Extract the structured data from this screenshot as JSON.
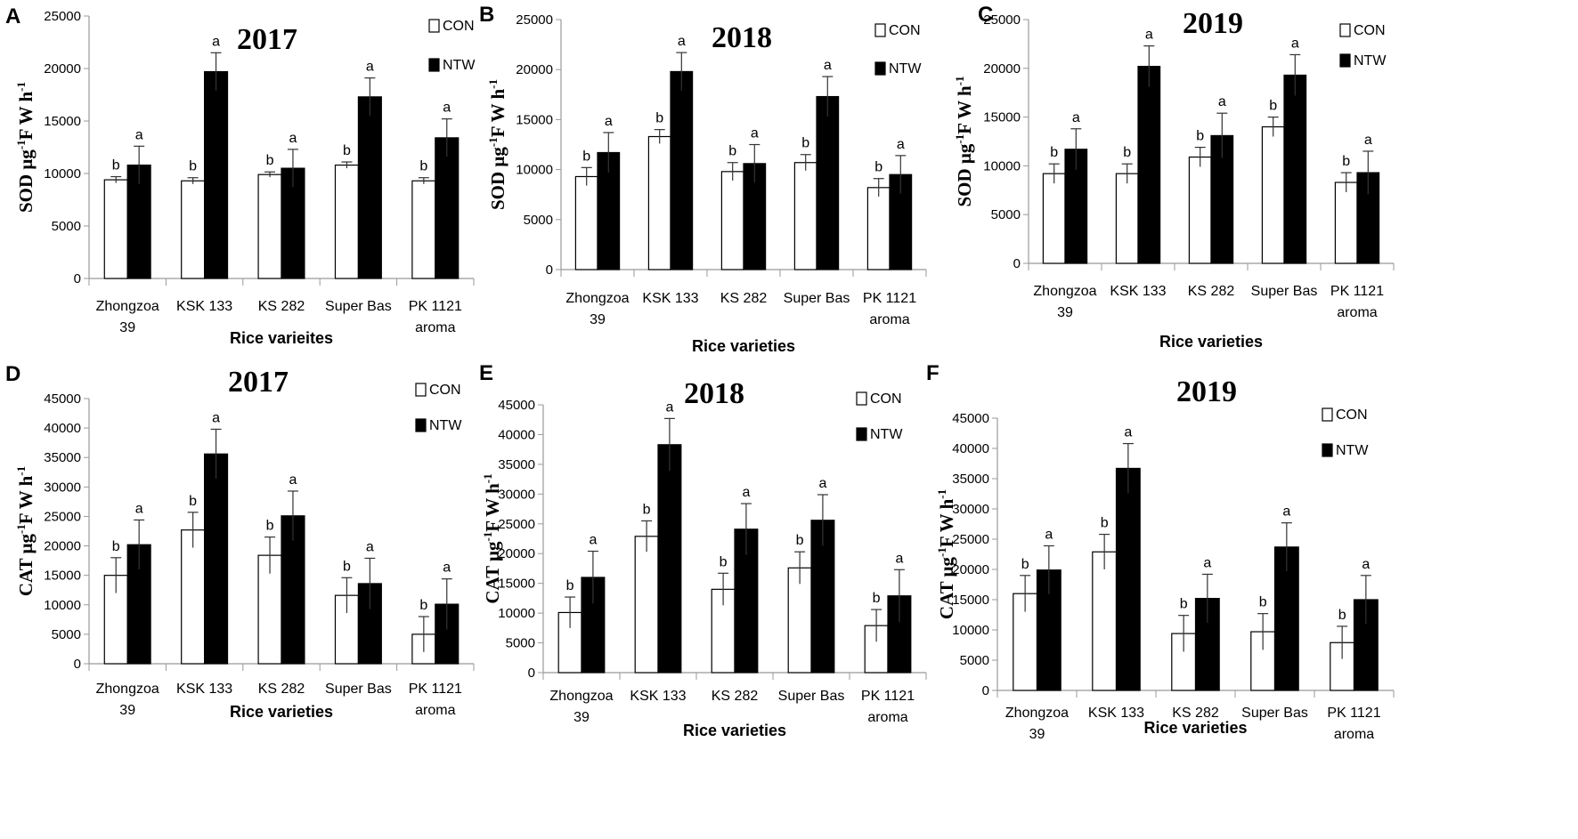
{
  "colors": {
    "con_fill": "#ffffff",
    "ntw_fill": "#000000",
    "stroke": "#000000"
  },
  "chart_data": [
    {
      "panel": "A",
      "type": "bar",
      "title": "2017",
      "xlabel": "Rice varieites",
      "ylabel_main": "SOD μg",
      "ylabel_sup1": "-1",
      "ylabel_mid": "F W h",
      "ylabel_sup2": "-1",
      "ylim": [
        0,
        25000
      ],
      "yticks": [
        "0",
        "5000",
        "10000",
        "15000",
        "20000",
        "25000"
      ],
      "categories": [
        [
          "Zhongzoa",
          "39"
        ],
        [
          "KSK 133"
        ],
        [
          "KS 282"
        ],
        [
          "Super Bas"
        ],
        [
          "PK 1121",
          "aroma"
        ]
      ],
      "series": [
        {
          "name": "CON",
          "values": [
            9400,
            9300,
            9900,
            10800,
            9300
          ],
          "errors": [
            300,
            300,
            250,
            300,
            300
          ],
          "letters": [
            "b",
            "b",
            "b",
            "b",
            "b"
          ]
        },
        {
          "name": "NTW",
          "values": [
            10800,
            19700,
            10500,
            17300,
            13400
          ],
          "errors": [
            1800,
            1800,
            1800,
            1800,
            1800
          ],
          "letters": [
            "a",
            "a",
            "a",
            "a",
            "a"
          ]
        }
      ]
    },
    {
      "panel": "B",
      "type": "bar",
      "title": "2018",
      "xlabel": "Rice varieties",
      "ylabel_main": "SOD μg",
      "ylabel_sup1": "-1",
      "ylabel_mid": "F W h",
      "ylabel_sup2": "-1",
      "ylim": [
        0,
        25000
      ],
      "yticks": [
        "0",
        "5000",
        "10000",
        "15000",
        "20000",
        "25000"
      ],
      "categories": [
        [
          "Zhongzoa",
          "39"
        ],
        [
          "KSK 133"
        ],
        [
          "KS 282"
        ],
        [
          "Super Bas"
        ],
        [
          "PK 1121",
          "aroma"
        ]
      ],
      "series": [
        {
          "name": "CON",
          "values": [
            9300,
            13300,
            9800,
            10700,
            8200
          ],
          "errors": [
            900,
            700,
            900,
            800,
            900
          ],
          "letters": [
            "b",
            "b",
            "b",
            "b",
            "b"
          ]
        },
        {
          "name": "NTW",
          "values": [
            11700,
            19800,
            10600,
            17300,
            9500
          ],
          "errors": [
            2000,
            1900,
            1900,
            2000,
            1900
          ],
          "letters": [
            "a",
            "a",
            "a",
            "a",
            "a"
          ]
        }
      ]
    },
    {
      "panel": "C",
      "type": "bar",
      "title": "2019",
      "xlabel": "Rice varieties",
      "ylabel_main": "SOD μg",
      "ylabel_sup1": "-1",
      "ylabel_mid": "F W h",
      "ylabel_sup2": "-1",
      "ylim": [
        0,
        25000
      ],
      "yticks": [
        "0",
        "5000",
        "10000",
        "15000",
        "20000",
        "25000"
      ],
      "categories": [
        [
          "Zhongzoa",
          "39"
        ],
        [
          "KSK 133"
        ],
        [
          "KS 282"
        ],
        [
          "Super Bas"
        ],
        [
          "PK 1121",
          "aroma"
        ]
      ],
      "series": [
        {
          "name": "CON",
          "values": [
            9200,
            9200,
            10900,
            14000,
            8300
          ],
          "errors": [
            1000,
            1000,
            1000,
            1000,
            1000
          ],
          "letters": [
            "b",
            "b",
            "b",
            "b",
            "b"
          ]
        },
        {
          "name": "NTW",
          "values": [
            11700,
            20200,
            13100,
            19300,
            9300
          ],
          "errors": [
            2100,
            2100,
            2300,
            2100,
            2200
          ],
          "letters": [
            "a",
            "a",
            "a",
            "a",
            "a"
          ]
        }
      ]
    },
    {
      "panel": "D",
      "type": "bar",
      "title": "2017",
      "xlabel": "Rice varieties",
      "ylabel_main": "CAT μg",
      "ylabel_sup1": "-1",
      "ylabel_mid": "F W h",
      "ylabel_sup2": "-1",
      "ylim": [
        0,
        45000
      ],
      "yticks": [
        "0",
        "5000",
        "10000",
        "15000",
        "20000",
        "25000",
        "30000",
        "35000",
        "40000",
        "45000"
      ],
      "categories": [
        [
          "Zhongzoa",
          "39"
        ],
        [
          "KSK 133"
        ],
        [
          "KS 282"
        ],
        [
          "Super Bas"
        ],
        [
          "PK 1121",
          "aroma"
        ]
      ],
      "series": [
        {
          "name": "CON",
          "values": [
            15000,
            22700,
            18400,
            11600,
            5000
          ],
          "errors": [
            3000,
            3000,
            3100,
            3000,
            3000
          ],
          "letters": [
            "b",
            "b",
            "b",
            "b",
            "b"
          ]
        },
        {
          "name": "NTW",
          "values": [
            20200,
            35600,
            25100,
            13600,
            10100
          ],
          "errors": [
            4200,
            4200,
            4200,
            4300,
            4300
          ],
          "letters": [
            "a",
            "a",
            "a",
            "a",
            "a"
          ]
        }
      ]
    },
    {
      "panel": "E",
      "type": "bar",
      "title": "2018",
      "xlabel": "Rice varieties",
      "ylabel_main": "CAT μg",
      "ylabel_sup1": "-1",
      "ylabel_mid": "F W h",
      "ylabel_sup2": "-1",
      "ylim": [
        0,
        45000
      ],
      "yticks": [
        "0",
        "5000",
        "10000",
        "15000",
        "20000",
        "25000",
        "30000",
        "35000",
        "40000",
        "45000"
      ],
      "categories": [
        [
          "Zhongzoa",
          "39"
        ],
        [
          "KSK 133"
        ],
        [
          "KS 282"
        ],
        [
          "Super Bas"
        ],
        [
          "PK 1121",
          "aroma"
        ]
      ],
      "series": [
        {
          "name": "CON",
          "values": [
            10100,
            22900,
            14000,
            17600,
            7900
          ],
          "errors": [
            2600,
            2600,
            2700,
            2700,
            2700
          ],
          "letters": [
            "b",
            "b",
            "b",
            "b",
            "b"
          ]
        },
        {
          "name": "NTW",
          "values": [
            16000,
            38300,
            24100,
            25600,
            12900
          ],
          "errors": [
            4400,
            4400,
            4300,
            4300,
            4400
          ],
          "letters": [
            "a",
            "a",
            "a",
            "a",
            "a"
          ]
        }
      ]
    },
    {
      "panel": "F",
      "type": "bar",
      "title": "2019",
      "xlabel": "Rice varieties",
      "ylabel_main": "CAT μg",
      "ylabel_sup1": "-1",
      "ylabel_mid": "F W h",
      "ylabel_sup2": "-1",
      "ylim": [
        0,
        45000
      ],
      "yticks": [
        "0",
        "5000",
        "10000",
        "15000",
        "20000",
        "25000",
        "30000",
        "35000",
        "40000",
        "45000"
      ],
      "categories": [
        [
          "Zhongzoa",
          "39"
        ],
        [
          "KSK 133"
        ],
        [
          "KS 282"
        ],
        [
          "Super Bas"
        ],
        [
          "PK 1121",
          "aroma"
        ]
      ],
      "series": [
        {
          "name": "CON",
          "values": [
            16000,
            22900,
            9400,
            9700,
            7900
          ],
          "errors": [
            3000,
            2900,
            3000,
            3000,
            2700
          ],
          "letters": [
            "b",
            "b",
            "b",
            "b",
            "b"
          ]
        },
        {
          "name": "NTW",
          "values": [
            19900,
            36700,
            15200,
            23700,
            15000
          ],
          "errors": [
            4000,
            4100,
            4000,
            4000,
            4000
          ],
          "letters": [
            "a",
            "a",
            "a",
            "a",
            "a"
          ]
        }
      ]
    }
  ]
}
